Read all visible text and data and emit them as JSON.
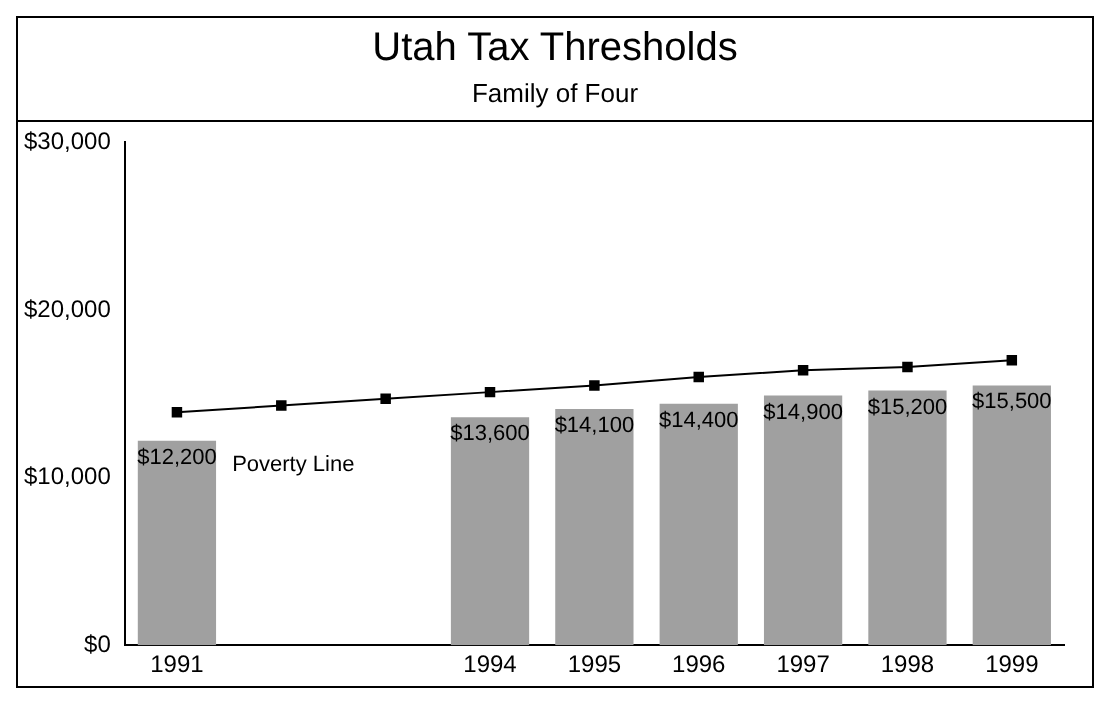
{
  "chart_data": {
    "type": "bar",
    "title": "Utah Tax Thresholds",
    "subtitle": "Family of Four",
    "categories": [
      "1991",
      null,
      null,
      "1994",
      "1995",
      "1996",
      "1997",
      "1998",
      "1999"
    ],
    "series": [
      {
        "color": "#a0a0a0",
        "values": [
          12200,
          null,
          null,
          13600,
          14100,
          14400,
          14900,
          15200,
          15500
        ],
        "value_labels": [
          "$12,200",
          null,
          null,
          "$13,600",
          "$14,100",
          "$14,400",
          "$14,900",
          "$15,200",
          "$15,500"
        ]
      },
      {
        "type": "line",
        "name": "Poverty Line",
        "color": "#000000",
        "marker": "square",
        "values": [
          13900,
          14300,
          14700,
          15100,
          15500,
          16000,
          16400,
          16600,
          17000
        ]
      }
    ],
    "ylim": [
      0,
      30000
    ],
    "yticks": [
      {
        "value": 0,
        "label": "$0"
      },
      {
        "value": 10000,
        "label": "$10,000"
      },
      {
        "value": 20000,
        "label": "$20,000"
      },
      {
        "value": 30000,
        "label": "$30,000"
      }
    ],
    "grid": false,
    "legend": false
  }
}
